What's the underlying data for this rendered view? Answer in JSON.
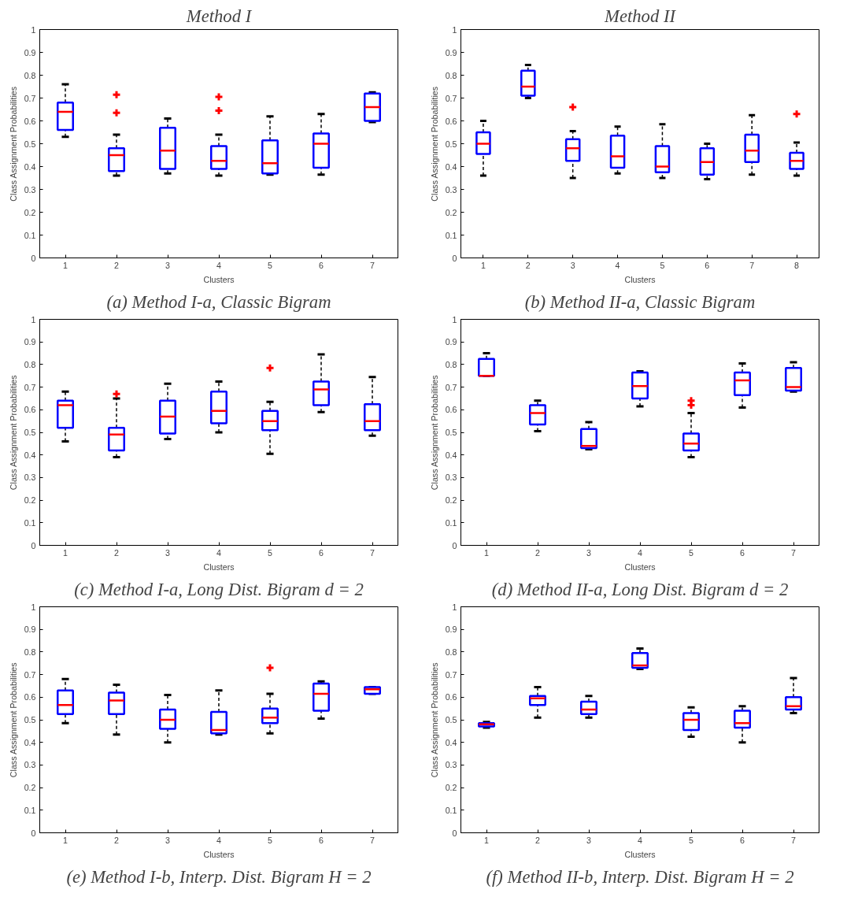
{
  "chart_data": [
    {
      "type": "box",
      "subtitle": "Method I",
      "title": "(a) Method I-a, Classic Bigram",
      "xlabel": "Clusters",
      "ylabel": "Class Assignment Probabilities",
      "categories": [
        "1",
        "2",
        "3",
        "4",
        "5",
        "6",
        "7"
      ],
      "ylim": [
        0,
        1
      ],
      "yticks": [
        0,
        0.1,
        0.2,
        0.3,
        0.4,
        0.5,
        0.6,
        0.7,
        0.8,
        0.9,
        1
      ],
      "series": [
        {
          "color": "#0000ff",
          "boxes": [
            {
              "low": 0.53,
              "q1": 0.56,
              "median": 0.64,
              "q3": 0.68,
              "high": 0.76
            },
            {
              "low": 0.36,
              "q1": 0.38,
              "median": 0.45,
              "q3": 0.48,
              "high": 0.54,
              "outliers": [
                0.715,
                0.635
              ]
            },
            {
              "low": 0.37,
              "q1": 0.39,
              "median": 0.47,
              "q3": 0.57,
              "high": 0.61
            },
            {
              "low": 0.36,
              "q1": 0.39,
              "median": 0.425,
              "q3": 0.49,
              "high": 0.54,
              "outliers": [
                0.705,
                0.645
              ]
            },
            {
              "low": 0.365,
              "q1": 0.37,
              "median": 0.415,
              "q3": 0.515,
              "high": 0.62
            },
            {
              "low": 0.365,
              "q1": 0.395,
              "median": 0.5,
              "q3": 0.545,
              "high": 0.63
            },
            {
              "low": 0.595,
              "q1": 0.6,
              "median": 0.66,
              "q3": 0.72,
              "high": 0.725
            }
          ]
        }
      ]
    },
    {
      "type": "box",
      "subtitle": "Method II",
      "title": "(b) Method II-a, Classic Bigram",
      "xlabel": "Clusters",
      "ylabel": "Class Assignment Probabilities",
      "categories": [
        "1",
        "2",
        "3",
        "4",
        "5",
        "6",
        "7",
        "8"
      ],
      "ylim": [
        0,
        1
      ],
      "yticks": [
        0,
        0.1,
        0.2,
        0.3,
        0.4,
        0.5,
        0.6,
        0.7,
        0.8,
        0.9,
        1
      ],
      "series": [
        {
          "color": "#0000ff",
          "boxes": [
            {
              "low": 0.36,
              "q1": 0.455,
              "median": 0.5,
              "q3": 0.55,
              "high": 0.6
            },
            {
              "low": 0.7,
              "q1": 0.71,
              "median": 0.75,
              "q3": 0.82,
              "high": 0.845
            },
            {
              "low": 0.35,
              "q1": 0.425,
              "median": 0.48,
              "q3": 0.52,
              "high": 0.555,
              "outliers": [
                0.66
              ]
            },
            {
              "low": 0.37,
              "q1": 0.395,
              "median": 0.445,
              "q3": 0.535,
              "high": 0.575
            },
            {
              "low": 0.35,
              "q1": 0.375,
              "median": 0.4,
              "q3": 0.49,
              "high": 0.585
            },
            {
              "low": 0.345,
              "q1": 0.365,
              "median": 0.42,
              "q3": 0.48,
              "high": 0.5
            },
            {
              "low": 0.365,
              "q1": 0.42,
              "median": 0.47,
              "q3": 0.54,
              "high": 0.625
            },
            {
              "low": 0.36,
              "q1": 0.39,
              "median": 0.425,
              "q3": 0.46,
              "high": 0.505,
              "outliers": [
                0.63
              ]
            }
          ]
        }
      ]
    },
    {
      "type": "box",
      "title": "(c) Method I-a, Long Dist. Bigram d = 2",
      "xlabel": "Clusters",
      "ylabel": "Class Assignment Probabilities",
      "categories": [
        "1",
        "2",
        "3",
        "4",
        "5",
        "6",
        "7"
      ],
      "ylim": [
        0,
        1
      ],
      "yticks": [
        0,
        0.1,
        0.2,
        0.3,
        0.4,
        0.5,
        0.6,
        0.7,
        0.8,
        0.9,
        1
      ],
      "series": [
        {
          "color": "#0000ff",
          "boxes": [
            {
              "low": 0.46,
              "q1": 0.52,
              "median": 0.62,
              "q3": 0.64,
              "high": 0.68
            },
            {
              "low": 0.39,
              "q1": 0.42,
              "median": 0.49,
              "q3": 0.52,
              "high": 0.65,
              "outliers": [
                0.67
              ]
            },
            {
              "low": 0.47,
              "q1": 0.495,
              "median": 0.57,
              "q3": 0.64,
              "high": 0.715
            },
            {
              "low": 0.5,
              "q1": 0.54,
              "median": 0.595,
              "q3": 0.68,
              "high": 0.725
            },
            {
              "low": 0.405,
              "q1": 0.51,
              "median": 0.55,
              "q3": 0.595,
              "high": 0.635,
              "outliers": [
                0.785
              ]
            },
            {
              "low": 0.59,
              "q1": 0.62,
              "median": 0.69,
              "q3": 0.725,
              "high": 0.845
            },
            {
              "low": 0.485,
              "q1": 0.51,
              "median": 0.55,
              "q3": 0.625,
              "high": 0.745
            }
          ]
        }
      ]
    },
    {
      "type": "box",
      "title": "(d) Method II-a, Long Dist. Bigram d = 2",
      "xlabel": "Clusters",
      "ylabel": "Class Assignment Probabilities",
      "categories": [
        "1",
        "2",
        "3",
        "4",
        "5",
        "6",
        "7"
      ],
      "ylim": [
        0,
        1
      ],
      "yticks": [
        0,
        0.1,
        0.2,
        0.3,
        0.4,
        0.5,
        0.6,
        0.7,
        0.8,
        0.9,
        1
      ],
      "series": [
        {
          "color": "#0000ff",
          "boxes": [
            {
              "low": 0.75,
              "q1": 0.75,
              "median": 0.75,
              "q3": 0.825,
              "high": 0.85
            },
            {
              "low": 0.505,
              "q1": 0.535,
              "median": 0.585,
              "q3": 0.62,
              "high": 0.64
            },
            {
              "low": 0.425,
              "q1": 0.43,
              "median": 0.44,
              "q3": 0.515,
              "high": 0.545
            },
            {
              "low": 0.615,
              "q1": 0.65,
              "median": 0.705,
              "q3": 0.765,
              "high": 0.77
            },
            {
              "low": 0.39,
              "q1": 0.42,
              "median": 0.45,
              "q3": 0.495,
              "high": 0.585,
              "outliers": [
                0.64,
                0.62
              ]
            },
            {
              "low": 0.61,
              "q1": 0.665,
              "median": 0.73,
              "q3": 0.765,
              "high": 0.805
            },
            {
              "low": 0.68,
              "q1": 0.685,
              "median": 0.7,
              "q3": 0.785,
              "high": 0.81
            }
          ]
        }
      ]
    },
    {
      "type": "box",
      "title": "(e) Method I-b, Interp. Dist. Bigram H = 2",
      "xlabel": "Clusters",
      "ylabel": "Class Assignment Probabilities",
      "categories": [
        "1",
        "2",
        "3",
        "4",
        "5",
        "6",
        "7"
      ],
      "ylim": [
        0,
        1
      ],
      "yticks": [
        0,
        0.1,
        0.2,
        0.3,
        0.4,
        0.5,
        0.6,
        0.7,
        0.8,
        0.9,
        1
      ],
      "series": [
        {
          "color": "#0000ff",
          "boxes": [
            {
              "low": 0.485,
              "q1": 0.525,
              "median": 0.565,
              "q3": 0.63,
              "high": 0.68
            },
            {
              "low": 0.435,
              "q1": 0.525,
              "median": 0.585,
              "q3": 0.62,
              "high": 0.655
            },
            {
              "low": 0.4,
              "q1": 0.46,
              "median": 0.5,
              "q3": 0.545,
              "high": 0.61
            },
            {
              "low": 0.435,
              "q1": 0.44,
              "median": 0.455,
              "q3": 0.535,
              "high": 0.63
            },
            {
              "low": 0.44,
              "q1": 0.485,
              "median": 0.51,
              "q3": 0.55,
              "high": 0.615,
              "outliers": [
                0.73
              ]
            },
            {
              "low": 0.505,
              "q1": 0.54,
              "median": 0.615,
              "q3": 0.66,
              "high": 0.67
            },
            {
              "low": 0.615,
              "q1": 0.615,
              "median": 0.635,
              "q3": 0.645,
              "high": 0.645
            }
          ]
        }
      ]
    },
    {
      "type": "box",
      "title": "(f) Method II-b, Interp. Dist. Bigram H = 2",
      "xlabel": "Clusters",
      "ylabel": "Class Assignment Probabilities",
      "categories": [
        "1",
        "2",
        "3",
        "4",
        "5",
        "6",
        "7"
      ],
      "ylim": [
        0,
        1
      ],
      "yticks": [
        0,
        0.1,
        0.2,
        0.3,
        0.4,
        0.5,
        0.6,
        0.7,
        0.8,
        0.9,
        1
      ],
      "series": [
        {
          "color": "#0000ff",
          "boxes": [
            {
              "low": 0.465,
              "q1": 0.47,
              "median": 0.48,
              "q3": 0.485,
              "high": 0.49
            },
            {
              "low": 0.51,
              "q1": 0.565,
              "median": 0.595,
              "q3": 0.605,
              "high": 0.645
            },
            {
              "low": 0.51,
              "q1": 0.525,
              "median": 0.545,
              "q3": 0.58,
              "high": 0.605
            },
            {
              "low": 0.725,
              "q1": 0.73,
              "median": 0.74,
              "q3": 0.795,
              "high": 0.815
            },
            {
              "low": 0.425,
              "q1": 0.455,
              "median": 0.5,
              "q3": 0.53,
              "high": 0.555
            },
            {
              "low": 0.4,
              "q1": 0.465,
              "median": 0.485,
              "q3": 0.54,
              "high": 0.56
            },
            {
              "low": 0.53,
              "q1": 0.545,
              "median": 0.56,
              "q3": 0.6,
              "high": 0.685
            }
          ]
        }
      ]
    }
  ]
}
